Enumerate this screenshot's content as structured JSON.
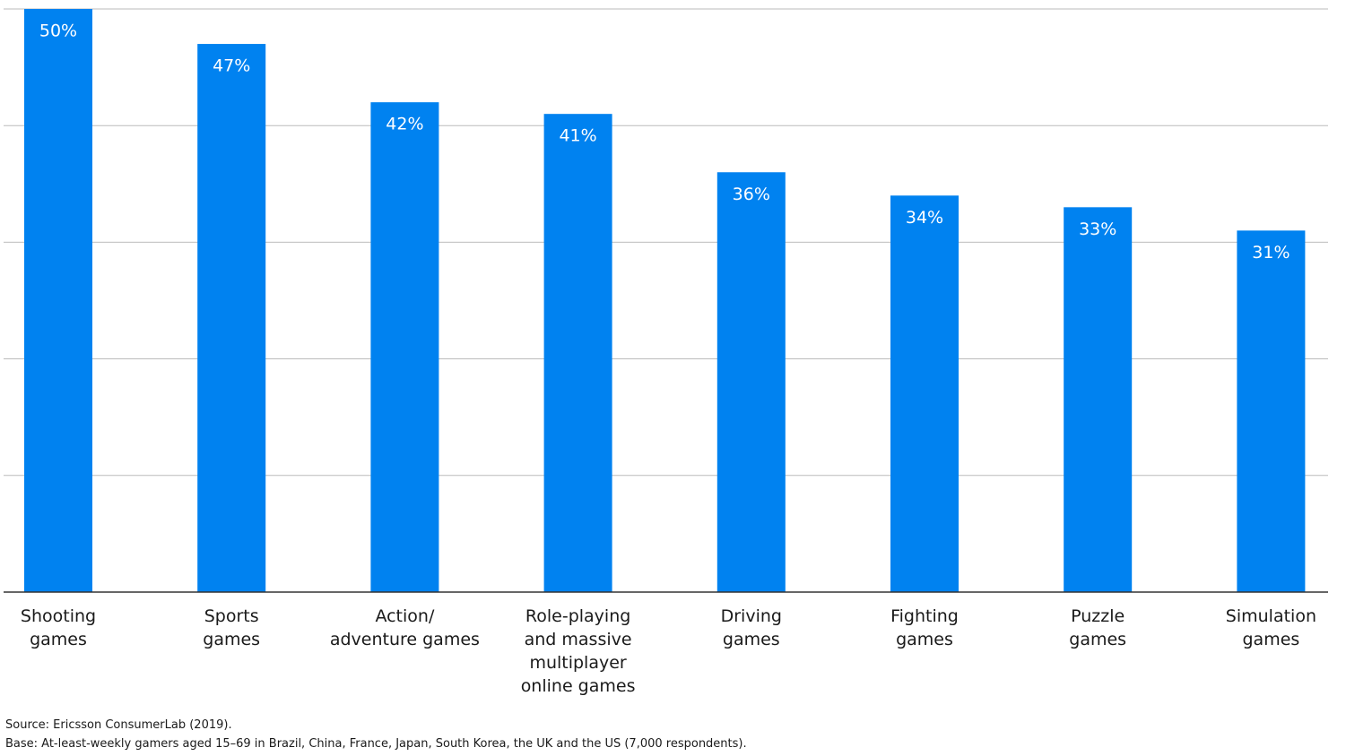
{
  "chart_data": {
    "type": "bar",
    "categories": [
      "Shooting\ngames",
      "Sports\ngames",
      "Action/\nadventure games",
      "Role-playing\nand massive\nmultiplayer\nonline games",
      "Driving\ngames",
      "Fighting\ngames",
      "Puzzle\ngames",
      "Simulation\ngames"
    ],
    "values": [
      50,
      47,
      42,
      41,
      36,
      34,
      33,
      31
    ],
    "value_labels": [
      "50%",
      "47%",
      "42%",
      "41%",
      "36%",
      "34%",
      "33%",
      "31%"
    ],
    "color": "#0082f0",
    "ylim": [
      0,
      50
    ],
    "yticks": [
      10,
      20,
      30,
      40,
      50
    ],
    "grid": true,
    "source": "Source: Ericsson ConsumerLab (2019).",
    "base": "Base: At-least-weekly gamers aged 15–69 in Brazil, China, France, Japan, South Korea, the UK and the US (7,000 respondents)."
  }
}
